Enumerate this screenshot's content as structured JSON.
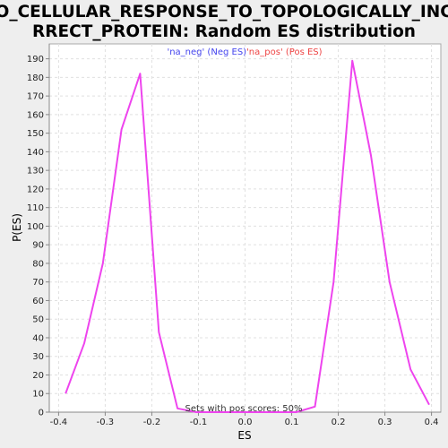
{
  "chart_data": {
    "type": "line",
    "title_lines": [
      "GO_CELLULAR_RESPONSE_TO_TOPOLOGICALLY_INCO",
      "RRECT_PROTEIN: Random ES distribution"
    ],
    "xlabel": "ES",
    "ylabel": "P(ES)",
    "xlim": [
      -0.42,
      0.42
    ],
    "ylim": [
      0,
      198
    ],
    "xticks": [
      -0.4,
      -0.3,
      -0.2,
      -0.1,
      0.0,
      0.1,
      0.2,
      0.3,
      0.4
    ],
    "xtick_labels": [
      "-0.4",
      "-0.3",
      "-0.2",
      "-0.1",
      "0.0",
      "0.1",
      "0.2",
      "0.3",
      "0.4"
    ],
    "yticks": [
      0,
      10,
      20,
      30,
      40,
      50,
      60,
      70,
      80,
      90,
      100,
      110,
      120,
      130,
      140,
      150,
      160,
      170,
      180,
      190
    ],
    "grid": true,
    "legend": [
      {
        "label": "'na_neg' (Neg ES)",
        "color": "#4444ee"
      },
      {
        "label": "'na_pos' (Pos ES)",
        "color": "#ee4444"
      }
    ],
    "annotation": "Sets with pos scores: 50%",
    "series": [
      {
        "color": "#ee44ee",
        "x": [
          -0.385,
          -0.345,
          -0.305,
          -0.265,
          -0.225,
          -0.185,
          -0.145,
          -0.105,
          -0.065,
          -0.025,
          0.015,
          0.055,
          0.095,
          0.11,
          0.15,
          0.19,
          0.23,
          0.27,
          0.31,
          0.355,
          0.395
        ],
        "y": [
          10,
          37,
          80,
          152,
          182,
          43,
          2,
          0,
          0,
          0,
          0,
          0,
          0,
          0,
          3,
          70,
          189,
          138,
          70,
          23,
          4
        ]
      }
    ]
  }
}
